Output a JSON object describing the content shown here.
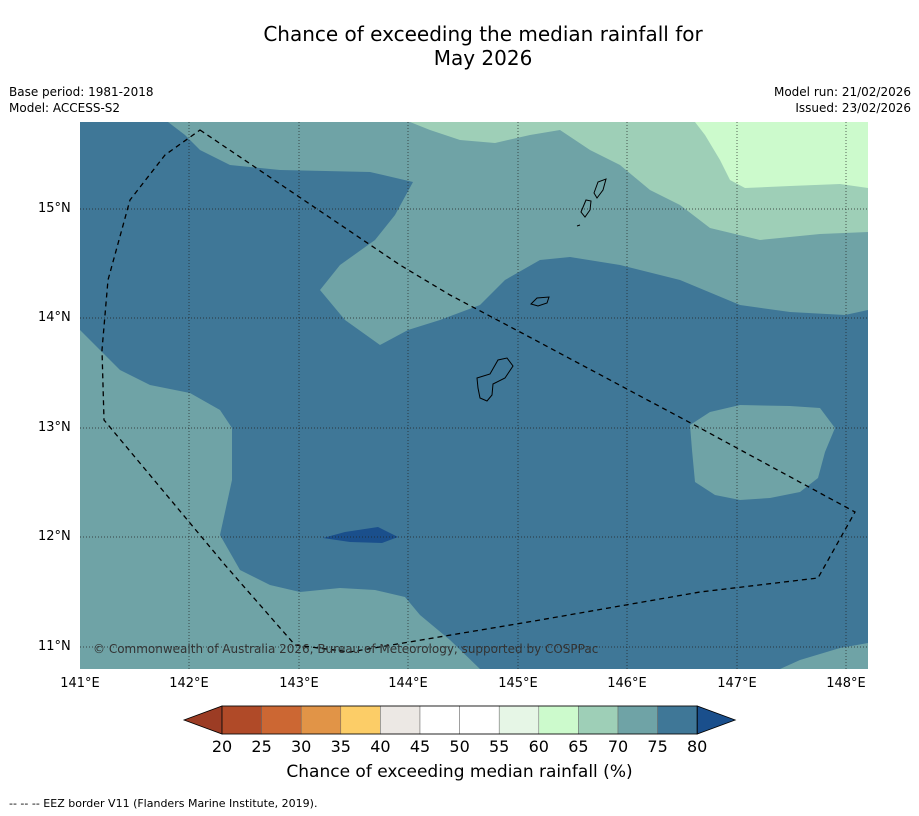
{
  "title_line1": "Chance of exceeding the median rainfall for",
  "title_line2": "May 2026",
  "base_period": "Base period: 1981-2018",
  "model": "Model: ACCESS-S2",
  "model_run": "Model run: 21/02/2026",
  "issued": "Issued: 23/02/2026",
  "copyright": "© Commonwealth of Australia 2026, Bureau of Meteorology, supported by COSPPac",
  "lat_labels": [
    "15°N",
    "14°N",
    "13°N",
    "12°N",
    "11°N"
  ],
  "lon_labels": [
    "141°E",
    "142°E",
    "143°E",
    "144°E",
    "145°E",
    "146°E",
    "147°E",
    "148°E"
  ],
  "colorbar": {
    "ticks": [
      "20",
      "25",
      "30",
      "35",
      "40",
      "45",
      "50",
      "55",
      "60",
      "65",
      "70",
      "75",
      "80"
    ],
    "colors": [
      "#b04a28",
      "#cc6733",
      "#e19447",
      "#fccd67",
      "#ece8e4",
      "#ffffff",
      "#ffffff",
      "#e6f6e6",
      "#ccfacc",
      "#9ecfb7",
      "#6fa3a6",
      "#3f7797"
    ],
    "under_color": "#9c3c24",
    "over_color": "#1a4f8c",
    "title": "Chance of exceeding median rainfall (%)"
  },
  "footnote": "--  --  -- EEZ border V11 (Flanders Marine Institute, 2019)."
}
